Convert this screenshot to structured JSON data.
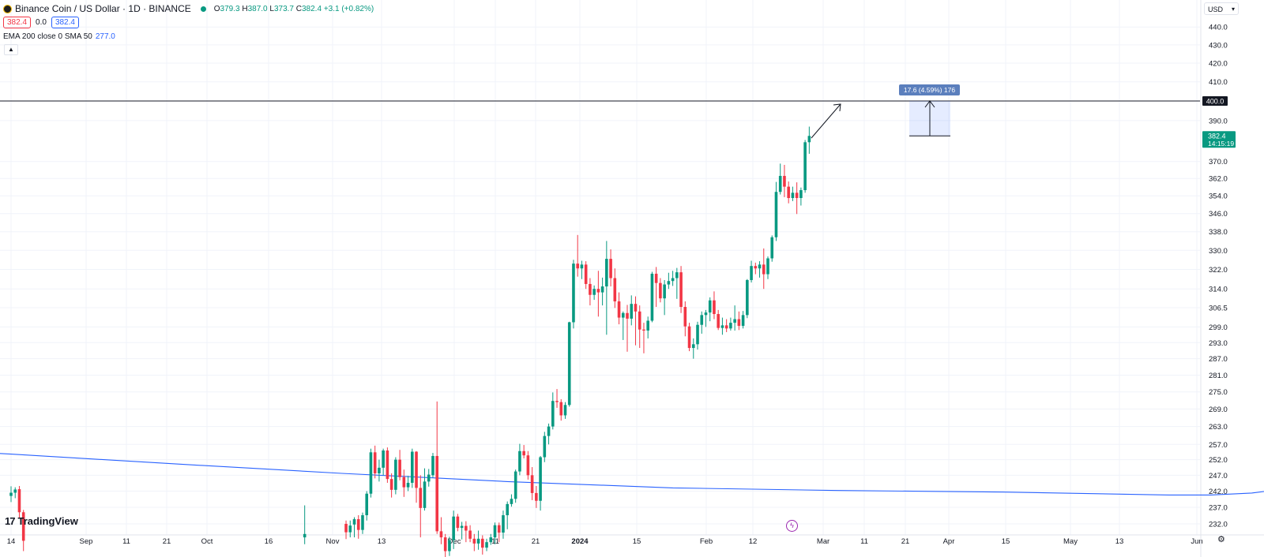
{
  "header": {
    "title": "Binance Coin / US Dollar · 1D · BINANCE",
    "ohlc": [
      {
        "key": "O",
        "value": "379.3"
      },
      {
        "key": "H",
        "value": "387.0"
      },
      {
        "key": "L",
        "value": "373.7"
      },
      {
        "key": "C",
        "value": "382.4"
      }
    ],
    "change": "+3.1 (+0.82%)",
    "sell_price": "382.4",
    "spread": "0.0",
    "buy_price": "382.4",
    "indicator_label": "EMA 200 close 0 SMA 50",
    "indicator_value": "277.0",
    "currency": "USD",
    "collapse_icon": "chevron-up-icon",
    "currency_icon": "chevron-down-icon"
  },
  "branding": {
    "logo_text": "TradingView"
  },
  "chart_data": {
    "type": "candlestick",
    "colors": {
      "up": "#089981",
      "down": "#f23645",
      "ema": "#2962ff",
      "bg": "#ffffff",
      "grid": "#f0f3fa",
      "text": "#131722"
    },
    "y_axis": {
      "ticks": [
        440.0,
        430.0,
        420.0,
        410.0,
        390.0,
        370.0,
        362.0,
        354.0,
        346.0,
        338.0,
        330.0,
        322.0,
        314.0,
        306.5,
        299.0,
        293.0,
        287.0,
        281.0,
        275.0,
        269.0,
        263.0,
        257.0,
        252.0,
        247.0,
        242.0,
        237.0,
        232.0
      ],
      "labels": [
        "440.0",
        "430.0",
        "420.0",
        "410.0",
        "390.0",
        "370.0",
        "362.0",
        "354.0",
        "346.0",
        "338.0",
        "330.0",
        "322.0",
        "314.0",
        "306.5",
        "299.0",
        "293.0",
        "287.0",
        "281.0",
        "275.0",
        "269.0",
        "263.0",
        "257.0",
        "252.0",
        "247.0",
        "242.0",
        "237.0",
        "232.0"
      ],
      "scale": "log"
    },
    "x_axis": {
      "labels": [
        "14",
        "Sep",
        "11",
        "21",
        "Oct",
        "16",
        "Nov",
        "13",
        "Dec",
        "11",
        "21",
        "2024",
        "15",
        "Feb",
        "12",
        "Mar",
        "11",
        "21",
        "Apr",
        "15",
        "May",
        "13",
        "Jun"
      ],
      "bold": [
        "2024"
      ]
    },
    "last_price": {
      "value": "382.4",
      "countdown": "14:15:19"
    },
    "horizontal_line": {
      "value": "400.0"
    },
    "projection": {
      "label": "17.6 (4.59%) 176",
      "from": 382.4,
      "to": 400.0
    },
    "ema200": [
      [
        -240,
        275.8
      ],
      [
        -200,
        272.4
      ],
      [
        -160,
        268.4
      ],
      [
        -120,
        264.4
      ],
      [
        -80,
        260.4
      ],
      [
        -40,
        257.0
      ],
      [
        0,
        253.8
      ],
      [
        40,
        250.6
      ],
      [
        80,
        247.6
      ],
      [
        120,
        245.0
      ],
      [
        160,
        243.0
      ],
      [
        200,
        242.2
      ],
      [
        240,
        241.7
      ],
      [
        280,
        240.8
      ],
      [
        290,
        240.8
      ],
      [
        300,
        241.4
      ],
      [
        320,
        244.6
      ],
      [
        340,
        248.0
      ],
      [
        360,
        251.2
      ],
      [
        380,
        253.8
      ],
      [
        400,
        256.4
      ],
      [
        420,
        259.6
      ],
      [
        440,
        262.0
      ],
      [
        460,
        264.4
      ],
      [
        480,
        266.4
      ],
      [
        500,
        268.4
      ],
      [
        520,
        271.0
      ],
      [
        530,
        273.0
      ],
      [
        540,
        275.6
      ],
      [
        545,
        277.0
      ]
    ],
    "candles": [
      [
        "2023-08-14",
        240.5,
        243.5,
        238.6,
        241.5
      ],
      [
        "2023-08-15",
        241.5,
        243.2,
        239.8,
        242.5
      ],
      [
        "2023-08-16",
        242.6,
        243.6,
        233.8,
        235.5
      ],
      [
        "2023-08-17",
        235.5,
        236.2,
        224.0,
        227.0
      ],
      [
        "2023-10-24",
        228.0,
        237.6,
        226.0,
        229.0
      ],
      [
        "2023-11-03",
        232.0,
        233.0,
        227.5,
        229.5
      ],
      [
        "2023-11-04",
        229.5,
        233.0,
        228.0,
        231.5
      ],
      [
        "2023-11-05",
        231.8,
        234.0,
        228.0,
        233.4
      ],
      [
        "2023-11-06",
        233.4,
        234.6,
        227.6,
        230.2
      ],
      [
        "2023-11-07",
        230.2,
        235.4,
        229.0,
        234.6
      ],
      [
        "2023-11-08",
        234.6,
        242.0,
        233.0,
        241.2
      ],
      [
        "2023-11-09",
        241.2,
        255.6,
        240.0,
        254.4
      ],
      [
        "2023-11-10",
        254.4,
        256.6,
        246.0,
        247.6
      ],
      [
        "2023-11-11",
        247.6,
        252.0,
        245.0,
        249.4
      ],
      [
        "2023-11-12",
        249.4,
        255.6,
        247.0,
        255.0
      ],
      [
        "2023-11-13",
        255.0,
        256.0,
        244.6,
        245.8
      ],
      [
        "2023-11-14",
        245.8,
        247.6,
        240.0,
        242.4
      ],
      [
        "2023-11-15",
        242.4,
        252.8,
        241.0,
        252.0
      ],
      [
        "2023-11-16",
        252.0,
        255.2,
        245.4,
        246.4
      ],
      [
        "2023-11-17",
        246.4,
        248.8,
        240.2,
        243.2
      ],
      [
        "2023-11-18",
        243.2,
        246.8,
        242.0,
        244.6
      ],
      [
        "2023-11-19",
        244.6,
        255.6,
        243.0,
        254.6
      ],
      [
        "2023-11-20",
        254.6,
        254.8,
        238.4,
        243.0
      ],
      [
        "2023-11-21",
        243.0,
        247.0,
        228.0,
        236.8
      ],
      [
        "2023-11-22",
        236.8,
        249.2,
        236.0,
        245.0
      ],
      [
        "2023-11-23",
        245.0,
        249.0,
        243.4,
        247.2
      ],
      [
        "2023-11-24",
        247.0,
        254.2,
        246.2,
        253.2
      ],
      [
        "2023-11-25",
        253.2,
        271.6,
        229.0,
        229.8
      ],
      [
        "2023-11-26",
        229.8,
        234.0,
        226.0,
        228.0
      ],
      [
        "2023-11-27",
        228.0,
        229.0,
        222.0,
        224.0
      ],
      [
        "2023-11-28",
        224.0,
        228.2,
        222.6,
        227.2
      ],
      [
        "2023-11-29",
        227.2,
        236.0,
        224.6,
        234.2
      ],
      [
        "2023-11-30",
        234.2,
        235.0,
        229.8,
        230.8
      ],
      [
        "2023-12-01",
        230.8,
        232.6,
        227.4,
        231.4
      ],
      [
        "2023-12-02",
        231.4,
        232.8,
        226.6,
        230.0
      ],
      [
        "2023-12-03",
        230.0,
        231.6,
        226.6,
        227.6
      ],
      [
        "2023-12-04",
        227.6,
        229.0,
        224.0,
        226.2
      ],
      [
        "2023-12-05",
        226.2,
        230.0,
        224.4,
        227.6
      ],
      [
        "2023-12-06",
        227.6,
        228.6,
        223.0,
        225.0
      ],
      [
        "2023-12-07",
        225.0,
        227.6,
        224.0,
        226.6
      ],
      [
        "2023-12-08",
        226.6,
        229.0,
        225.8,
        228.0
      ],
      [
        "2023-12-09",
        228.0,
        232.4,
        226.0,
        231.6
      ],
      [
        "2023-12-10",
        231.6,
        232.4,
        226.6,
        229.4
      ],
      [
        "2023-12-11",
        229.4,
        236.0,
        227.6,
        234.6
      ],
      [
        "2023-12-12",
        234.6,
        238.8,
        230.4,
        238.0
      ],
      [
        "2023-12-13",
        238.0,
        241.0,
        237.2,
        239.6
      ],
      [
        "2023-12-14",
        239.6,
        248.8,
        238.4,
        248.2
      ],
      [
        "2023-12-15",
        248.2,
        257.2,
        247.0,
        254.8
      ],
      [
        "2023-12-16",
        254.8,
        256.8,
        252.4,
        253.4
      ],
      [
        "2023-12-17",
        253.4,
        254.8,
        245.6,
        247.0
      ],
      [
        "2023-12-18",
        247.0,
        249.6,
        239.2,
        241.4
      ],
      [
        "2023-12-19",
        241.4,
        243.6,
        236.8,
        239.0
      ],
      [
        "2023-12-20",
        239.0,
        253.2,
        236.0,
        252.8
      ],
      [
        "2023-12-21",
        252.8,
        261.2,
        251.2,
        259.8
      ],
      [
        "2023-12-22",
        259.8,
        264.0,
        257.0,
        263.0
      ],
      [
        "2023-12-23",
        263.0,
        274.8,
        262.0,
        271.8
      ],
      [
        "2023-12-24",
        271.8,
        276.0,
        269.4,
        271.4
      ],
      [
        "2023-12-25",
        271.4,
        272.4,
        265.0,
        266.8
      ],
      [
        "2023-12-26",
        266.8,
        271.4,
        265.6,
        270.4
      ],
      [
        "2023-12-27",
        270.4,
        301.0,
        269.8,
        300.8
      ],
      [
        "2023-12-28",
        300.8,
        326.0,
        298.4,
        324.4
      ],
      [
        "2023-12-29",
        324.4,
        336.6,
        319.0,
        322.4
      ],
      [
        "2023-12-30",
        322.4,
        325.6,
        318.0,
        324.0
      ],
      [
        "2023-12-31",
        324.0,
        325.4,
        314.0,
        316.0
      ],
      [
        "2024-01-01",
        316.0,
        318.4,
        307.4,
        311.6
      ],
      [
        "2024-01-02",
        311.6,
        315.4,
        309.6,
        314.0
      ],
      [
        "2024-01-03",
        314.0,
        321.4,
        303.0,
        312.6
      ],
      [
        "2024-01-04",
        312.6,
        318.6,
        307.4,
        315.0
      ],
      [
        "2024-01-05",
        315.0,
        334.0,
        296.0,
        326.4
      ],
      [
        "2024-01-06",
        326.4,
        330.4,
        315.0,
        318.4
      ],
      [
        "2024-01-07",
        318.4,
        322.4,
        306.4,
        309.0
      ],
      [
        "2024-01-08",
        309.0,
        312.6,
        300.0,
        302.6
      ],
      [
        "2024-01-09",
        302.6,
        305.0,
        294.0,
        304.4
      ],
      [
        "2024-01-10",
        304.4,
        307.6,
        289.6,
        302.2
      ],
      [
        "2024-01-11",
        302.2,
        311.4,
        299.6,
        308.0
      ],
      [
        "2024-01-12",
        308.0,
        311.0,
        292.0,
        305.0
      ],
      [
        "2024-01-13",
        305.0,
        307.4,
        291.0,
        298.0
      ],
      [
        "2024-01-14",
        298.0,
        300.6,
        289.0,
        297.6
      ],
      [
        "2024-01-15",
        297.6,
        303.0,
        294.6,
        301.4
      ],
      [
        "2024-01-16",
        301.4,
        321.0,
        300.8,
        320.2
      ],
      [
        "2024-01-17",
        320.2,
        323.0,
        306.8,
        316.4
      ],
      [
        "2024-01-18",
        316.4,
        318.4,
        308.6,
        310.2
      ],
      [
        "2024-01-19",
        310.2,
        317.6,
        303.6,
        315.8
      ],
      [
        "2024-01-20",
        315.8,
        320.6,
        314.0,
        317.2
      ],
      [
        "2024-01-21",
        317.2,
        321.4,
        315.2,
        318.4
      ],
      [
        "2024-01-22",
        318.4,
        322.6,
        310.0,
        320.8
      ],
      [
        "2024-01-23",
        320.8,
        323.4,
        304.4,
        306.8
      ],
      [
        "2024-01-24",
        306.8,
        309.0,
        295.4,
        299.2
      ],
      [
        "2024-01-25",
        299.2,
        300.6,
        289.8,
        291.0
      ],
      [
        "2024-01-26",
        291.0,
        294.6,
        287.0,
        292.4
      ],
      [
        "2024-01-27",
        292.4,
        301.0,
        290.4,
        299.8
      ],
      [
        "2024-01-28",
        299.8,
        305.0,
        296.4,
        303.6
      ],
      [
        "2024-01-29",
        303.6,
        305.6,
        299.0,
        304.6
      ],
      [
        "2024-01-30",
        304.6,
        310.6,
        301.2,
        309.4
      ],
      [
        "2024-01-31",
        309.4,
        313.0,
        302.0,
        304.0
      ],
      [
        "2024-02-01",
        304.0,
        305.6,
        297.8,
        298.6
      ],
      [
        "2024-02-02",
        298.6,
        302.6,
        296.0,
        299.6
      ],
      [
        "2024-02-03",
        299.6,
        302.0,
        297.0,
        298.4
      ],
      [
        "2024-02-04",
        298.4,
        302.6,
        297.6,
        300.6
      ],
      [
        "2024-02-05",
        300.6,
        307.4,
        297.6,
        302.0
      ],
      [
        "2024-02-06",
        302.0,
        305.0,
        297.8,
        299.4
      ],
      [
        "2024-02-07",
        299.4,
        305.2,
        298.4,
        303.6
      ],
      [
        "2024-02-08",
        303.6,
        318.0,
        302.4,
        317.6
      ],
      [
        "2024-02-09",
        317.6,
        325.6,
        316.6,
        323.4
      ],
      [
        "2024-02-10",
        323.4,
        324.8,
        320.0,
        322.4
      ],
      [
        "2024-02-11",
        322.4,
        325.4,
        318.6,
        324.0
      ],
      [
        "2024-02-12",
        324.0,
        330.8,
        314.0,
        320.0
      ],
      [
        "2024-02-13",
        320.0,
        327.4,
        318.0,
        326.6
      ],
      [
        "2024-02-14",
        326.6,
        336.4,
        325.2,
        335.6
      ],
      [
        "2024-02-15",
        335.6,
        360.4,
        334.0,
        355.8
      ],
      [
        "2024-02-16",
        355.8,
        369.0,
        354.6,
        363.2
      ],
      [
        "2024-02-17",
        363.2,
        368.4,
        353.4,
        358.2
      ],
      [
        "2024-02-18",
        358.2,
        360.6,
        350.6,
        353.0
      ],
      [
        "2024-02-19",
        353.0,
        358.2,
        351.6,
        355.4
      ],
      [
        "2024-02-20",
        355.4,
        360.2,
        345.8,
        353.0
      ],
      [
        "2024-02-21",
        353.0,
        357.8,
        349.6,
        356.6
      ],
      [
        "2024-02-22",
        356.6,
        380.4,
        355.4,
        379.3
      ],
      [
        "2024-02-23",
        379.3,
        387.0,
        373.7,
        382.4
      ]
    ]
  }
}
